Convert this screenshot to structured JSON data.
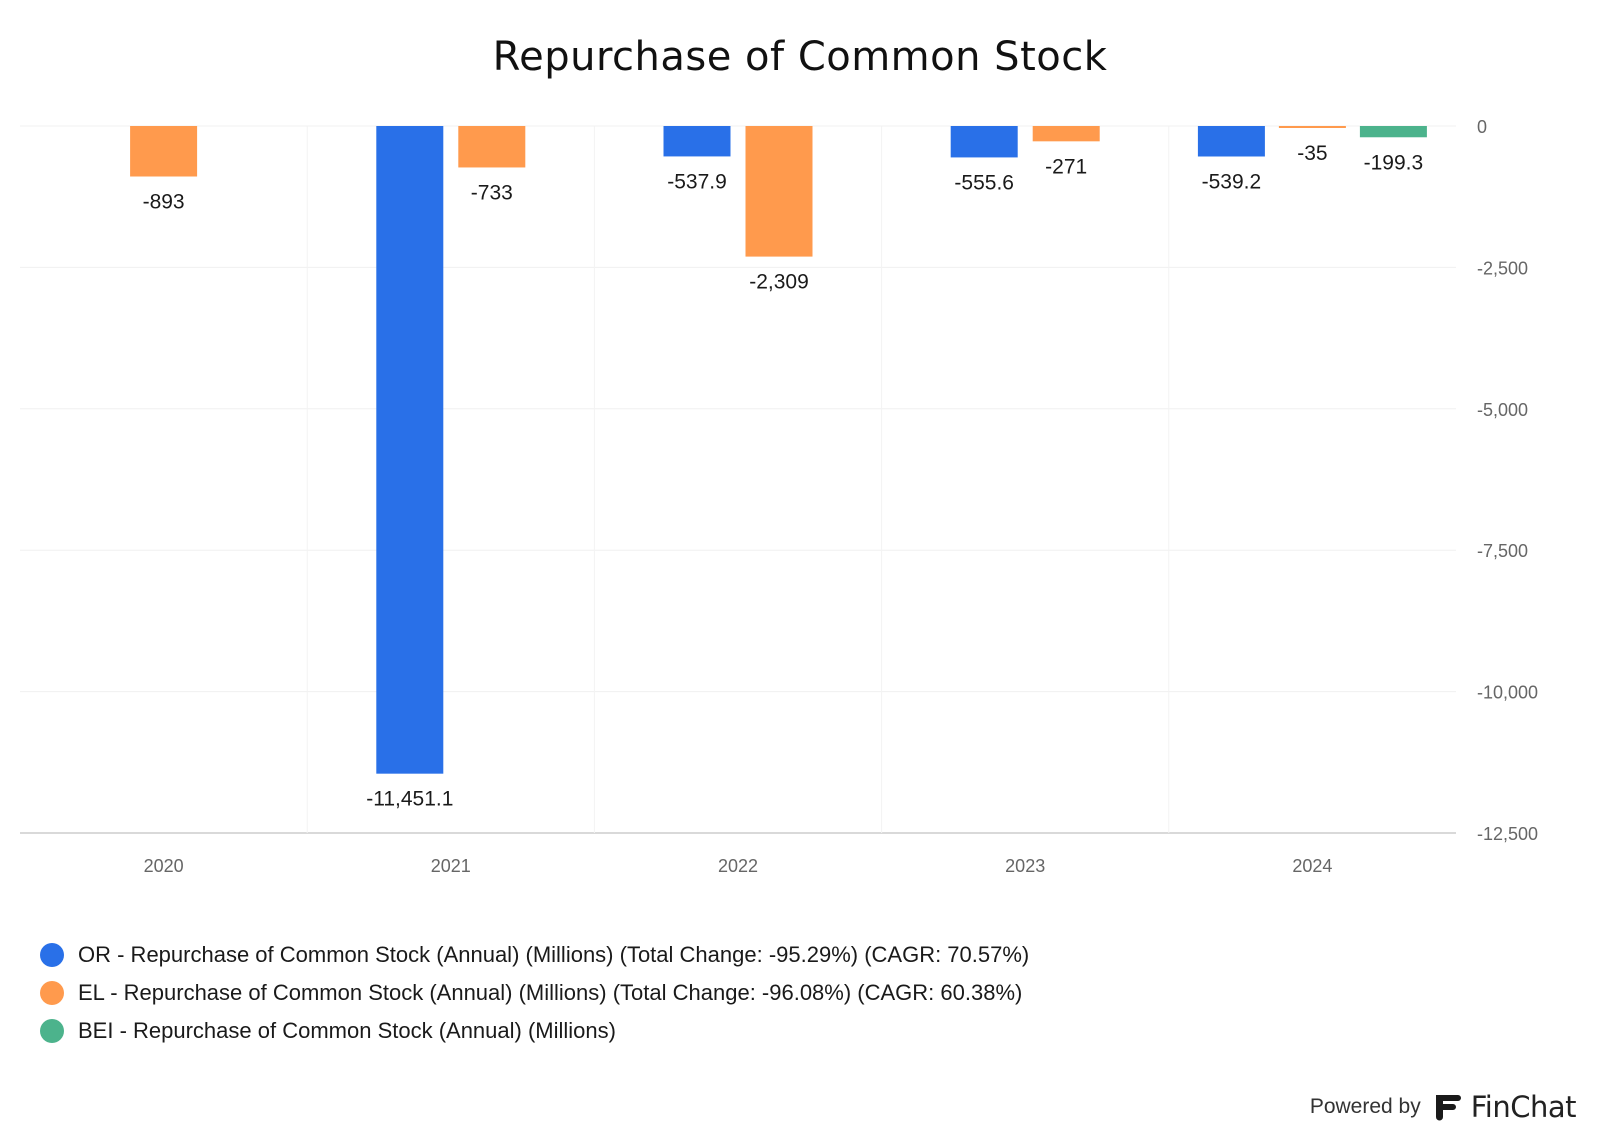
{
  "chart_data": {
    "type": "bar",
    "title": "Repurchase of Common Stock",
    "categories": [
      "2020",
      "2021",
      "2022",
      "2023",
      "2024"
    ],
    "ylim": [
      -12500,
      0
    ],
    "yticks": [
      0,
      -2500,
      -5000,
      -7500,
      -10000,
      -12500
    ],
    "ytick_labels": [
      "0",
      "-2,500",
      "-5,000",
      "-7,500",
      "-10,000",
      "-12,500"
    ],
    "grid": true,
    "legend_position": "bottom-left",
    "series": [
      {
        "name": "OR - Repurchase of Common Stock (Annual) (Millions) (Total Change: -95.29%) (CAGR: 70.57%)",
        "color": "#2970e8",
        "values": [
          null,
          -11451.1,
          -537.9,
          -555.6,
          -539.2
        ],
        "labels": [
          null,
          "-11,451.1",
          "-537.9",
          "-555.6",
          "-539.2"
        ]
      },
      {
        "name": "EL - Repurchase of Common Stock (Annual) (Millions) (Total Change: -96.08%) (CAGR: 60.38%)",
        "color": "#ff9a4d",
        "values": [
          -893,
          -733,
          -2309,
          -271,
          -35
        ],
        "labels": [
          "-893",
          "-733",
          "-2,309",
          "-271",
          "-35"
        ]
      },
      {
        "name": "BEI - Repurchase of Common Stock (Annual) (Millions)",
        "color": "#4cb38c",
        "values": [
          null,
          null,
          null,
          null,
          -199.3
        ],
        "labels": [
          null,
          null,
          null,
          null,
          "-199.3"
        ]
      }
    ]
  },
  "footer": {
    "powered_by": "Powered by",
    "brand": "FinChat",
    "brand_icon": "finchat-logo-icon"
  }
}
